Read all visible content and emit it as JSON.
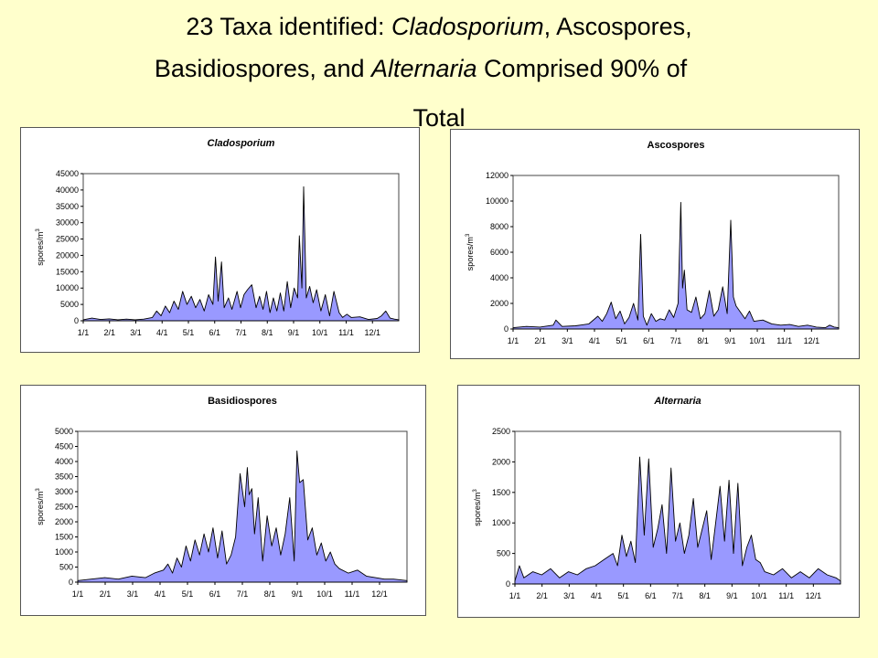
{
  "slide": {
    "title_line1_a": "23 Taxa identified: ",
    "title_line1_b": "Cladosporium",
    "title_line1_c": ", Ascospores,",
    "title_line2_a": "Basidiospores, and ",
    "title_line2_b": "Alternaria",
    "title_line2_c": " Comprised 90% of",
    "title_line3": "Total"
  },
  "chart_data": [
    {
      "type": "area",
      "title": "Cladosporium",
      "title_italic": true,
      "ylabel": "spores/m",
      "ylabel_sup": "3",
      "ylim": [
        0,
        45000
      ],
      "yticks": [
        0,
        5000,
        10000,
        15000,
        20000,
        25000,
        30000,
        35000,
        40000,
        45000
      ],
      "xticks": [
        "1/1",
        "2/1",
        "3/1",
        "4/1",
        "5/1",
        "6/1",
        "7/1",
        "8/1",
        "9/1",
        "10/1",
        "11/1",
        "12/1"
      ],
      "xlim": [
        0,
        365
      ],
      "fill_color": "#9999ff",
      "grid": false,
      "x": [
        0,
        10,
        20,
        30,
        40,
        50,
        60,
        70,
        80,
        85,
        90,
        95,
        100,
        105,
        110,
        115,
        120,
        125,
        130,
        135,
        140,
        145,
        150,
        153,
        156,
        160,
        163,
        168,
        172,
        178,
        182,
        186,
        190,
        195,
        200,
        204,
        208,
        212,
        216,
        220,
        224,
        228,
        232,
        236,
        240,
        244,
        248,
        250,
        253,
        255,
        258,
        262,
        266,
        270,
        275,
        280,
        285,
        290,
        296,
        300,
        305,
        310,
        320,
        330,
        340,
        345,
        350,
        355,
        360,
        365
      ],
      "y": [
        300,
        800,
        400,
        600,
        300,
        500,
        300,
        500,
        1000,
        3000,
        1500,
        4500,
        2500,
        6000,
        3500,
        9000,
        5000,
        7500,
        4000,
        6500,
        3000,
        8000,
        5000,
        19500,
        6000,
        18000,
        4000,
        7000,
        3500,
        9000,
        4000,
        8000,
        9500,
        11000,
        4000,
        7500,
        3500,
        9000,
        2500,
        7000,
        3000,
        8500,
        3000,
        12000,
        4000,
        10000,
        7000,
        26000,
        10000,
        41000,
        7000,
        10500,
        5500,
        9500,
        3000,
        8000,
        1500,
        9000,
        2500,
        1000,
        2000,
        1000,
        1200,
        400,
        700,
        1500,
        3000,
        800,
        500,
        300
      ]
    },
    {
      "type": "area",
      "title": "Ascospores",
      "title_italic": false,
      "ylabel": "spores/m",
      "ylabel_sup": "3",
      "ylim": [
        0,
        12000
      ],
      "yticks": [
        0,
        2000,
        4000,
        6000,
        8000,
        10000,
        12000
      ],
      "xticks": [
        "1/1",
        "2/1",
        "3/1",
        "4/1",
        "5/1",
        "6/1",
        "7/1",
        "8/1",
        "9/1",
        "10/1",
        "11/1",
        "12/1"
      ],
      "xlim": [
        0,
        365
      ],
      "fill_color": "#9999ff",
      "grid": false,
      "x": [
        0,
        15,
        30,
        45,
        48,
        55,
        70,
        85,
        95,
        100,
        105,
        110,
        115,
        120,
        125,
        130,
        135,
        140,
        143,
        146,
        150,
        155,
        160,
        165,
        170,
        175,
        180,
        185,
        188,
        190,
        192,
        195,
        200,
        205,
        210,
        215,
        220,
        225,
        230,
        235,
        240,
        244,
        247,
        250,
        255,
        260,
        265,
        270,
        280,
        290,
        300,
        310,
        320,
        330,
        340,
        350,
        355,
        360,
        365
      ],
      "y": [
        100,
        200,
        150,
        300,
        700,
        200,
        250,
        400,
        1000,
        600,
        1200,
        2100,
        800,
        1400,
        400,
        900,
        2000,
        700,
        7400,
        1000,
        300,
        1200,
        600,
        800,
        700,
        1500,
        900,
        2000,
        9900,
        3200,
        4600,
        1500,
        1300,
        2500,
        800,
        1200,
        3000,
        1000,
        1500,
        3300,
        1200,
        8500,
        2500,
        1800,
        1300,
        800,
        1400,
        600,
        700,
        400,
        300,
        350,
        200,
        300,
        150,
        100,
        300,
        150,
        100
      ]
    },
    {
      "type": "area",
      "title": "Basidiospores",
      "title_italic": false,
      "ylabel": "spores/m",
      "ylabel_sup": "3",
      "ylim": [
        0,
        5000
      ],
      "yticks": [
        0,
        500,
        1000,
        1500,
        2000,
        2500,
        3000,
        3500,
        4000,
        4500,
        5000
      ],
      "xticks": [
        "1/1",
        "2/1",
        "3/1",
        "4/1",
        "5/1",
        "6/1",
        "7/1",
        "8/1",
        "9/1",
        "10/1",
        "11/1",
        "12/1"
      ],
      "xlim": [
        0,
        365
      ],
      "fill_color": "#9999ff",
      "grid": false,
      "x": [
        0,
        15,
        30,
        45,
        60,
        75,
        85,
        95,
        100,
        105,
        110,
        115,
        120,
        125,
        130,
        135,
        140,
        145,
        150,
        155,
        160,
        165,
        170,
        175,
        180,
        185,
        188,
        190,
        193,
        196,
        200,
        205,
        210,
        215,
        220,
        225,
        230,
        235,
        240,
        243,
        246,
        250,
        255,
        260,
        265,
        270,
        275,
        280,
        285,
        290,
        300,
        310,
        320,
        330,
        340,
        350,
        365
      ],
      "y": [
        50,
        100,
        150,
        100,
        200,
        150,
        300,
        400,
        600,
        300,
        800,
        500,
        1200,
        700,
        1400,
        900,
        1600,
        1000,
        1800,
        800,
        1700,
        600,
        900,
        1500,
        3600,
        2500,
        3800,
        2900,
        3100,
        1600,
        2800,
        700,
        2200,
        1200,
        1800,
        900,
        1600,
        2800,
        700,
        4350,
        3300,
        3400,
        1400,
        1800,
        900,
        1300,
        700,
        1000,
        600,
        450,
        300,
        400,
        200,
        150,
        100,
        100,
        50
      ]
    },
    {
      "type": "area",
      "title": "Alternaria",
      "title_italic": true,
      "ylabel": "spores/m",
      "ylabel_sup": "3",
      "ylim": [
        0,
        2500
      ],
      "yticks": [
        0,
        500,
        1000,
        1500,
        2000,
        2500
      ],
      "xticks": [
        "1/1",
        "2/1",
        "3/1",
        "4/1",
        "5/1",
        "6/1",
        "7/1",
        "8/1",
        "9/1",
        "10/1",
        "11/1",
        "12/1"
      ],
      "xlim": [
        0,
        365
      ],
      "fill_color": "#9999ff",
      "grid": false,
      "x": [
        0,
        5,
        10,
        20,
        30,
        40,
        50,
        60,
        70,
        80,
        90,
        100,
        110,
        115,
        120,
        125,
        130,
        135,
        140,
        145,
        150,
        155,
        160,
        165,
        170,
        175,
        180,
        185,
        190,
        195,
        200,
        205,
        210,
        215,
        220,
        225,
        230,
        235,
        240,
        245,
        250,
        255,
        260,
        265,
        270,
        275,
        280,
        290,
        300,
        310,
        320,
        330,
        340,
        350,
        360,
        365
      ],
      "y": [
        50,
        300,
        100,
        200,
        150,
        250,
        100,
        200,
        150,
        250,
        300,
        400,
        500,
        300,
        800,
        450,
        700,
        350,
        2080,
        800,
        2050,
        600,
        900,
        1300,
        500,
        1900,
        700,
        1000,
        500,
        800,
        1400,
        600,
        900,
        1200,
        400,
        1000,
        1600,
        700,
        1700,
        500,
        1650,
        300,
        600,
        800,
        400,
        350,
        200,
        150,
        250,
        100,
        200,
        100,
        250,
        150,
        100,
        50
      ]
    }
  ]
}
